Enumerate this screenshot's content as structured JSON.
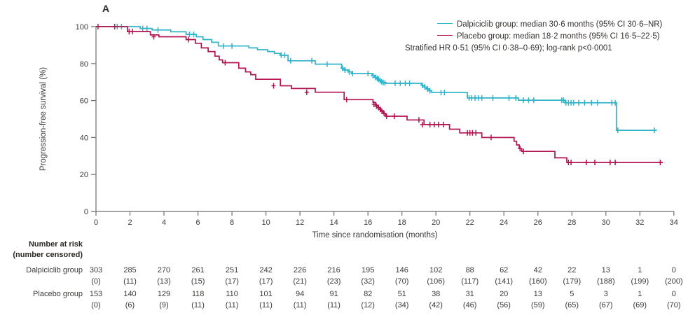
{
  "panel_label": "A",
  "legend": {
    "dalpiciclib_label": "Dalpiciclib group: median 30·6 months (95% CI 30·6–NR)",
    "placebo_label": "Placebo group: median 18·2 months (95% CI 16·5–22·5)",
    "stratified_line": "Stratified HR 0·51 (95% CI 0·38–0·69); log-rank p<0·0001"
  },
  "chart_data": {
    "type": "line",
    "subtype": "kaplan-meier-step",
    "xlabel": "Time since randomisation (months)",
    "ylabel": "Progression-free survival (%)",
    "xlim": [
      0,
      34
    ],
    "ylim": [
      0,
      100
    ],
    "x_ticks": [
      0,
      2,
      4,
      6,
      8,
      10,
      12,
      14,
      16,
      18,
      20,
      22,
      24,
      26,
      28,
      30,
      32,
      34
    ],
    "y_ticks": [
      0,
      20,
      40,
      60,
      80,
      100
    ],
    "grid": false,
    "legend_position": "top-right",
    "series": [
      {
        "name": "Dalpiciclib group",
        "color": "#2fb3c9",
        "median_months": "30·6",
        "ci": "30·6–NR",
        "steps": [
          [
            0,
            100
          ],
          [
            2.6,
            99
          ],
          [
            3.3,
            98.2
          ],
          [
            4.4,
            97.2
          ],
          [
            5.3,
            95.8
          ],
          [
            5.9,
            94.5
          ],
          [
            6.3,
            93
          ],
          [
            6.8,
            91.5
          ],
          [
            7.2,
            89.5
          ],
          [
            9.0,
            88.5
          ],
          [
            9.5,
            87.5
          ],
          [
            10.1,
            86.5
          ],
          [
            10.5,
            85.5
          ],
          [
            10.85,
            84.5
          ],
          [
            11.3,
            81.5
          ],
          [
            12.9,
            79.7
          ],
          [
            14.45,
            77.5
          ],
          [
            14.6,
            76.5
          ],
          [
            14.85,
            75.5
          ],
          [
            15.05,
            74.6
          ],
          [
            16.25,
            73.5
          ],
          [
            16.4,
            72.5
          ],
          [
            16.55,
            71.5
          ],
          [
            16.7,
            70.5
          ],
          [
            16.85,
            69.8
          ],
          [
            17.05,
            69.3
          ],
          [
            19.15,
            68.3
          ],
          [
            19.3,
            67.3
          ],
          [
            19.45,
            66.3
          ],
          [
            19.6,
            65.3
          ],
          [
            19.75,
            64.3
          ],
          [
            21.85,
            61.4
          ],
          [
            24.85,
            60.2
          ],
          [
            27.6,
            58.8
          ],
          [
            30.62,
            43.9
          ],
          [
            33.0,
            43.9
          ]
        ],
        "censors": [
          [
            1.25,
            100
          ],
          [
            1.5,
            100
          ],
          [
            2.75,
            99
          ],
          [
            3.0,
            99
          ],
          [
            3.65,
            98.2
          ],
          [
            5.5,
            95.8
          ],
          [
            5.75,
            95.8
          ],
          [
            7.5,
            89.5
          ],
          [
            8.0,
            89.5
          ],
          [
            10.9,
            84.5
          ],
          [
            11.1,
            84.5
          ],
          [
            11.45,
            81.5
          ],
          [
            12.7,
            81.5
          ],
          [
            13.6,
            79.7
          ],
          [
            14.5,
            77.5
          ],
          [
            14.65,
            76.5
          ],
          [
            14.9,
            75.5
          ],
          [
            15.1,
            74.6
          ],
          [
            16.0,
            74.6
          ],
          [
            16.3,
            73.5
          ],
          [
            16.45,
            72.5
          ],
          [
            16.55,
            72
          ],
          [
            16.62,
            71.5
          ],
          [
            16.72,
            70.8
          ],
          [
            16.8,
            70.2
          ],
          [
            16.9,
            69.8
          ],
          [
            17.0,
            69.5
          ],
          [
            17.6,
            69.3
          ],
          [
            17.9,
            69.3
          ],
          [
            18.2,
            69.3
          ],
          [
            18.45,
            69.3
          ],
          [
            19.2,
            68.3
          ],
          [
            19.35,
            67.3
          ],
          [
            19.5,
            66.3
          ],
          [
            19.65,
            65.3
          ],
          [
            20.3,
            64.3
          ],
          [
            20.5,
            64.3
          ],
          [
            21.95,
            61.4
          ],
          [
            22.1,
            61.4
          ],
          [
            22.3,
            61.4
          ],
          [
            22.5,
            61.4
          ],
          [
            22.7,
            61.4
          ],
          [
            23.35,
            61.4
          ],
          [
            24.3,
            61.4
          ],
          [
            24.7,
            61.4
          ],
          [
            25.15,
            60.2
          ],
          [
            25.45,
            60.2
          ],
          [
            25.75,
            60.2
          ],
          [
            27.4,
            60.2
          ],
          [
            27.5,
            60.2
          ],
          [
            27.65,
            58.8
          ],
          [
            27.8,
            58.8
          ],
          [
            27.95,
            58.8
          ],
          [
            28.1,
            58.8
          ],
          [
            28.4,
            58.8
          ],
          [
            28.75,
            58.8
          ],
          [
            29.15,
            58.8
          ],
          [
            29.5,
            58.8
          ],
          [
            30.35,
            58.8
          ],
          [
            30.55,
            58.8
          ],
          [
            30.7,
            43.9
          ],
          [
            32.85,
            43.9
          ]
        ]
      },
      {
        "name": "Placebo group",
        "color": "#b11350",
        "median_months": "18·2",
        "ci": "16·5–22·5",
        "steps": [
          [
            0,
            100
          ],
          [
            1.85,
            97.3
          ],
          [
            3.2,
            95.5
          ],
          [
            3.7,
            94.5
          ],
          [
            5.3,
            93
          ],
          [
            5.85,
            91
          ],
          [
            6.2,
            88.5
          ],
          [
            6.6,
            86.5
          ],
          [
            7.0,
            84
          ],
          [
            7.25,
            82
          ],
          [
            7.45,
            80.5
          ],
          [
            8.4,
            77.5
          ],
          [
            8.8,
            75.5
          ],
          [
            9.1,
            74
          ],
          [
            9.4,
            71.5
          ],
          [
            10.85,
            68
          ],
          [
            11.5,
            66.5
          ],
          [
            12.9,
            64.5
          ],
          [
            14.6,
            60.5
          ],
          [
            16.3,
            59
          ],
          [
            16.45,
            57.5
          ],
          [
            16.6,
            56
          ],
          [
            16.75,
            54.5
          ],
          [
            16.9,
            53
          ],
          [
            17.05,
            51.5
          ],
          [
            18.3,
            49.5
          ],
          [
            19.3,
            47
          ],
          [
            20.8,
            44.5
          ],
          [
            21.4,
            42.5
          ],
          [
            22.7,
            40
          ],
          [
            24.6,
            38
          ],
          [
            24.75,
            36
          ],
          [
            24.9,
            34
          ],
          [
            25.05,
            32.5
          ],
          [
            27.0,
            29
          ],
          [
            27.7,
            26.5
          ],
          [
            33.35,
            26.5
          ]
        ],
        "censors": [
          [
            0.12,
            100
          ],
          [
            1.1,
            100
          ],
          [
            1.95,
            97.3
          ],
          [
            2.15,
            97.3
          ],
          [
            3.4,
            94.5
          ],
          [
            5.45,
            93
          ],
          [
            7.6,
            80.5
          ],
          [
            10.45,
            68
          ],
          [
            12.4,
            64.5
          ],
          [
            14.75,
            60.5
          ],
          [
            16.35,
            58
          ],
          [
            16.5,
            57
          ],
          [
            16.62,
            56.2
          ],
          [
            16.72,
            55.2
          ],
          [
            16.82,
            54.2
          ],
          [
            16.95,
            53
          ],
          [
            17.1,
            51.5
          ],
          [
            17.55,
            51.5
          ],
          [
            19.0,
            49.5
          ],
          [
            19.2,
            47
          ],
          [
            19.65,
            47
          ],
          [
            19.9,
            47
          ],
          [
            20.15,
            47
          ],
          [
            20.45,
            47
          ],
          [
            21.85,
            42.5
          ],
          [
            22.0,
            42.5
          ],
          [
            22.15,
            42.5
          ],
          [
            22.35,
            42.5
          ],
          [
            23.25,
            40
          ],
          [
            24.95,
            34
          ],
          [
            25.15,
            32.5
          ],
          [
            27.8,
            26.5
          ],
          [
            27.95,
            26.5
          ],
          [
            28.85,
            26.5
          ],
          [
            29.35,
            26.5
          ],
          [
            30.25,
            26.5
          ],
          [
            30.55,
            26.5
          ],
          [
            33.2,
            26.5
          ]
        ]
      }
    ]
  },
  "risk_table": {
    "header_line1": "Number at risk",
    "header_line2": "(number censored)",
    "rows": [
      {
        "label": "Dalpiciclib group",
        "at_risk": [
          "303",
          "285",
          "270",
          "261",
          "251",
          "242",
          "226",
          "216",
          "195",
          "146",
          "102",
          "88",
          "62",
          "42",
          "22",
          "13",
          "1",
          "0"
        ],
        "censored": [
          "(0)",
          "(11)",
          "(13)",
          "(15)",
          "(17)",
          "(17)",
          "(21)",
          "(23)",
          "(32)",
          "(70)",
          "(106)",
          "(117)",
          "(141)",
          "(160)",
          "(179)",
          "(188)",
          "(199)",
          "(200)"
        ]
      },
      {
        "label": "Placebo group",
        "at_risk": [
          "153",
          "140",
          "129",
          "118",
          "110",
          "101",
          "94",
          "91",
          "82",
          "51",
          "38",
          "31",
          "20",
          "13",
          "5",
          "3",
          "1",
          "0"
        ],
        "censored": [
          "(0)",
          "(6)",
          "(9)",
          "(11)",
          "(11)",
          "(11)",
          "(11)",
          "(11)",
          "(12)",
          "(34)",
          "(42)",
          "(46)",
          "(56)",
          "(59)",
          "(65)",
          "(67)",
          "(69)",
          "(70)"
        ]
      }
    ]
  },
  "colors": {
    "dalpiciclib": "#2fb3c9",
    "placebo": "#b11350",
    "axis": "#6f6f6f",
    "text": "#3d3a38"
  }
}
